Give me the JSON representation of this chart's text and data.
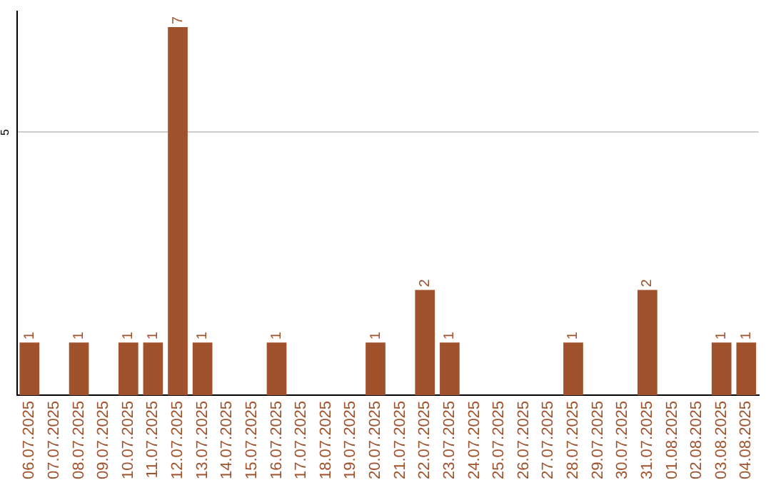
{
  "chart_data": {
    "type": "bar",
    "categories": [
      "06.07.2025",
      "07.07.2025",
      "08.07.2025",
      "09.07.2025",
      "10.07.2025",
      "11.07.2025",
      "12.07.2025",
      "13.07.2025",
      "14.07.2025",
      "15.07.2025",
      "16.07.2025",
      "17.07.2025",
      "18.07.2025",
      "19.07.2025",
      "20.07.2025",
      "21.07.2025",
      "22.07.2025",
      "23.07.2025",
      "24.07.2025",
      "25.07.2025",
      "26.07.2025",
      "27.07.2025",
      "28.07.2025",
      "29.07.2025",
      "30.07.2025",
      "31.07.2025",
      "01.08.2025",
      "02.08.2025",
      "03.08.2025",
      "04.08.2025"
    ],
    "values": [
      1,
      0,
      1,
      0,
      1,
      1,
      7,
      1,
      0,
      0,
      1,
      0,
      0,
      0,
      1,
      0,
      2,
      1,
      0,
      0,
      0,
      0,
      1,
      0,
      0,
      2,
      0,
      0,
      1,
      1
    ],
    "value_labels": [
      "1",
      null,
      "1",
      null,
      "1",
      "1",
      "7",
      "1",
      null,
      null,
      "1",
      null,
      null,
      null,
      "1",
      null,
      "2",
      "1",
      null,
      null,
      null,
      null,
      "1",
      null,
      null,
      "2",
      null,
      null,
      "1",
      "1"
    ],
    "color": "#a0522d",
    "ylim": [
      0,
      7.3
    ],
    "yticks": [
      5
    ],
    "grid": "y"
  }
}
